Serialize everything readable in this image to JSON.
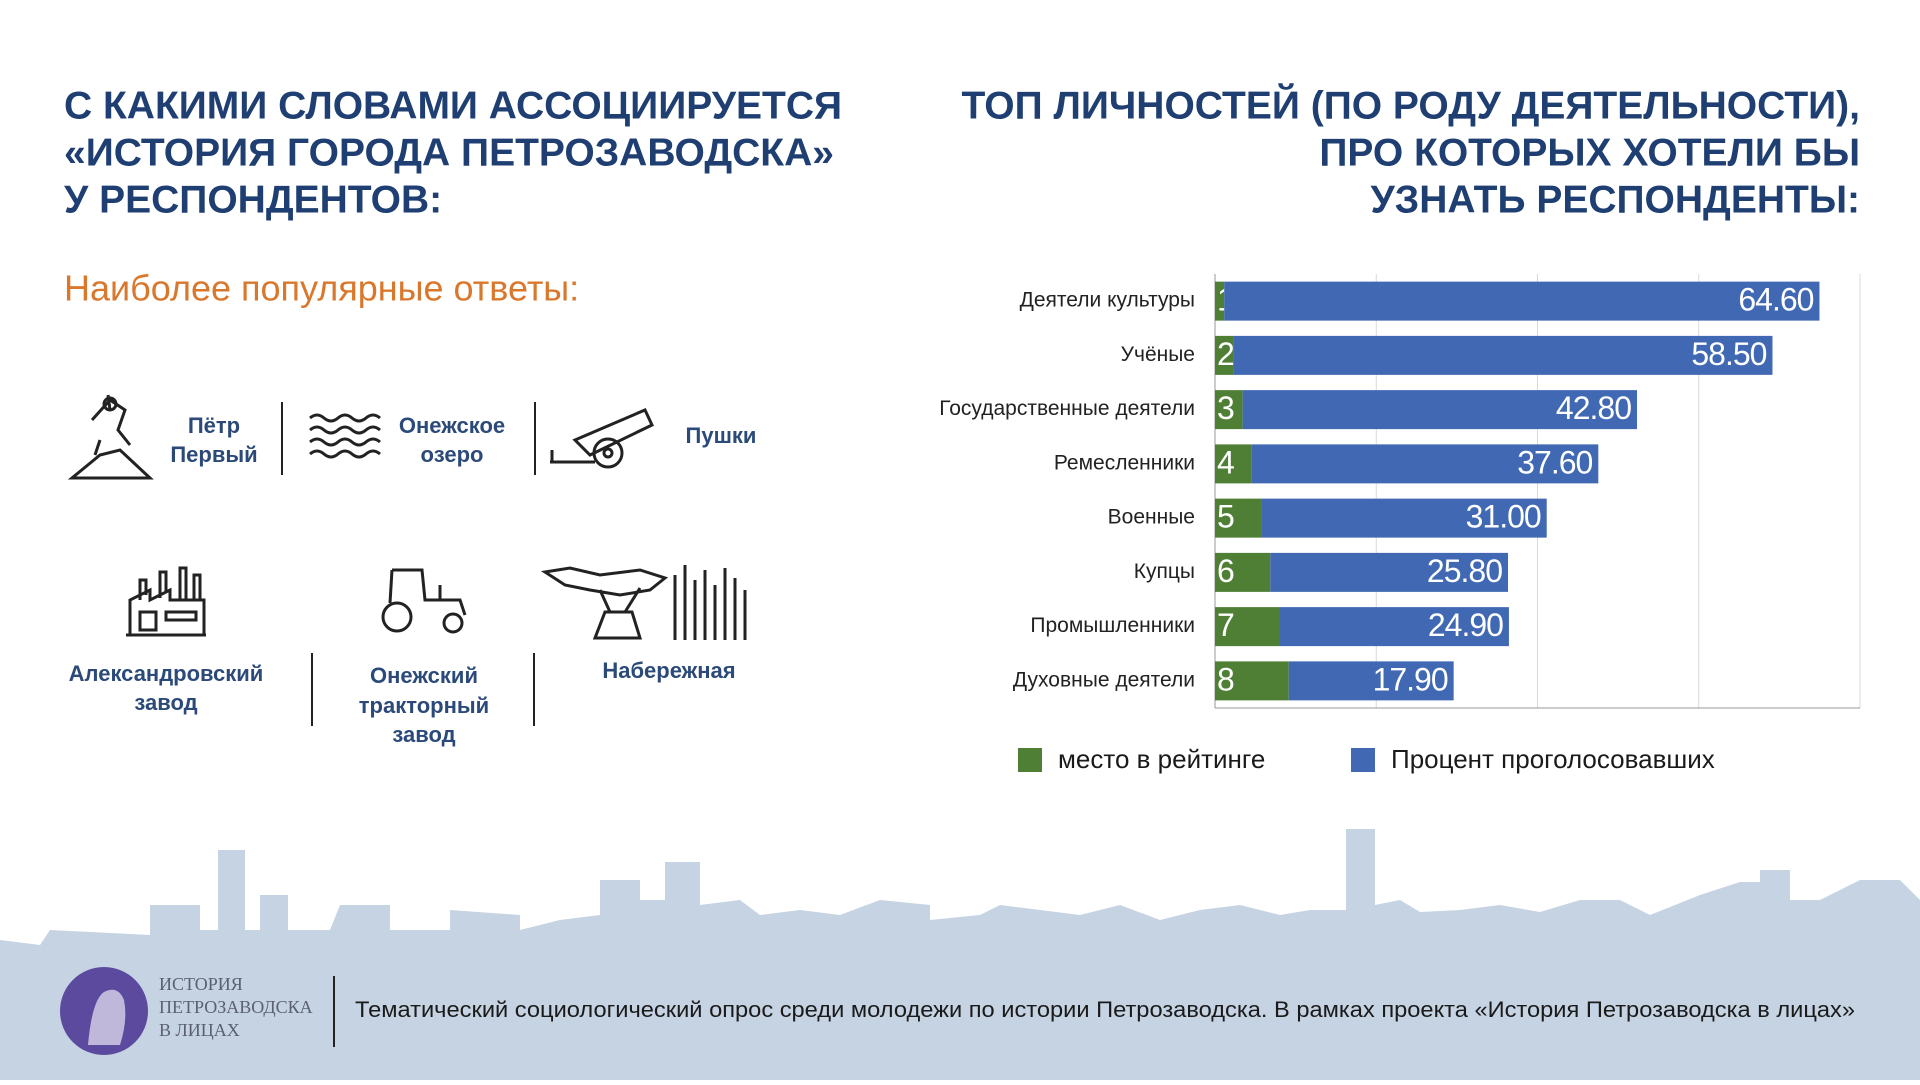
{
  "left": {
    "title": [
      "С КАКИМИ СЛОВАМИ АССОЦИИРУЕТСЯ",
      "«ИСТОРИЯ ГОРОДА ПЕТРОЗАВОДСКА»",
      "У РЕСПОНДЕНТОВ:"
    ],
    "subtitle": "Наиболее популярные ответы:",
    "answers": [
      [
        "Пётр",
        "Первый"
      ],
      [
        "Онежское",
        "озеро"
      ],
      [
        "Пушки"
      ],
      [
        "Александровский",
        "завод"
      ],
      [
        "Онежский",
        "тракторный",
        "завод"
      ],
      [
        "Набережная"
      ]
    ]
  },
  "chart_data": {
    "type": "bar",
    "orientation": "horizontal",
    "stacked": true,
    "title": [
      "ТОП ЛИЧНОСТЕЙ (ПО РОДУ ДЕЯТЕЛЬНОСТИ),",
      "ПРО КОТОРЫХ ХОТЕЛИ БЫ",
      "УЗНАТЬ РЕСПОНДЕНТЫ:"
    ],
    "categories": [
      "Деятели культуры",
      "Учёные",
      "Государственные деятели",
      "Ремесленники",
      "Военные",
      "Купцы",
      "Промышленники",
      "Духовные деятели"
    ],
    "series": [
      {
        "name": "место в рейтинге",
        "color": "#4f7f34",
        "values": [
          1,
          2,
          3,
          4,
          5,
          6,
          7,
          8
        ]
      },
      {
        "name": "Процент проголосовавших",
        "color": "#4169b3",
        "values": [
          64.6,
          58.5,
          42.8,
          37.6,
          31.0,
          25.8,
          24.9,
          17.9
        ],
        "value_labels": [
          "64.60",
          "58.50",
          "42.80",
          "37.60",
          "31.00",
          "25.80",
          "24.90",
          "17.90"
        ]
      }
    ],
    "xlim": [
      0,
      70
    ],
    "xticks": [
      0,
      17.5,
      35,
      52.5,
      70
    ],
    "grid": true
  },
  "footer": {
    "logo": [
      "ИСТОРИЯ",
      "ПЕТРОЗАВОДСКА",
      "В ЛИЦАХ"
    ],
    "text": "Тематический социологический опрос среди молодежи по истории Петрозаводска. В рамках проекта «История Петрозаводска в лицах»"
  }
}
